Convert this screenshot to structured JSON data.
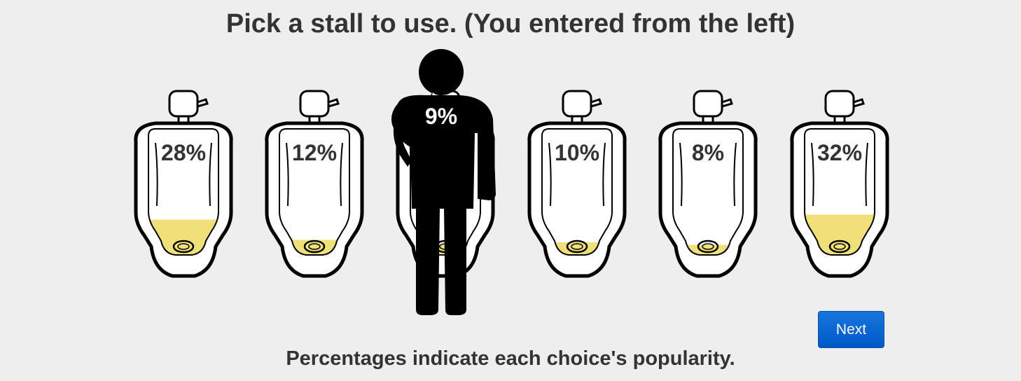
{
  "title": "Pick a stall to use. (You entered from the left)",
  "stalls": [
    {
      "label": "28%",
      "fill_fraction": 0.28
    },
    {
      "label": "12%",
      "fill_fraction": 0.12
    },
    {
      "label": "9%",
      "fill_fraction": 0.09,
      "occupied_by_person": true
    },
    {
      "label": "10%",
      "fill_fraction": 0.1
    },
    {
      "label": "8%",
      "fill_fraction": 0.08
    },
    {
      "label": "32%",
      "fill_fraction": 0.32
    }
  ],
  "colors": {
    "background": "#eeeeee",
    "liquid": "#efe07a",
    "outline": "#000000",
    "button": "#0058c8"
  },
  "next_button": {
    "label": "Next"
  },
  "footer": "Percentages indicate each choice's popularity."
}
